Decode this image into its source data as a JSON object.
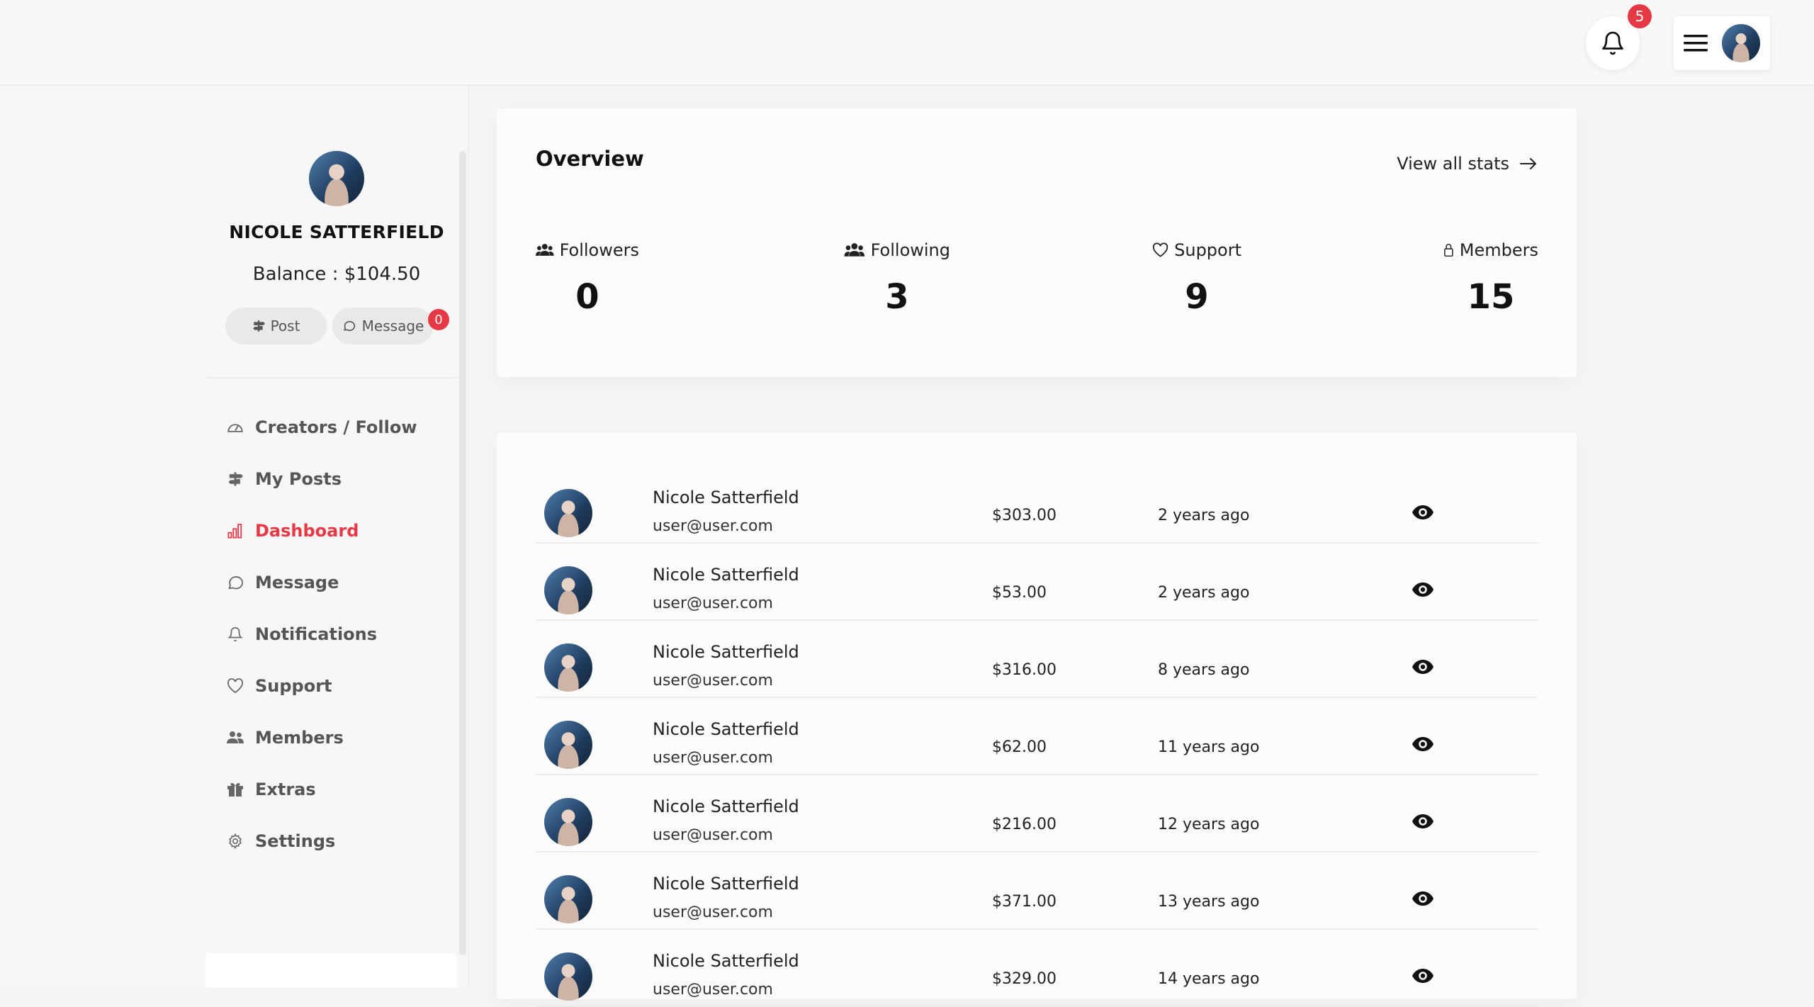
{
  "header": {
    "notification_count": "5"
  },
  "profile": {
    "name": "NICOLE SATTERFIELD",
    "balance_label": "Balance : $104.50",
    "post_label": "Post",
    "message_label": "Message",
    "message_count": "0"
  },
  "nav": {
    "items": [
      {
        "label": "Creators / Follow",
        "icon": "gauge-icon",
        "active": false
      },
      {
        "label": "My Posts",
        "icon": "signpost-icon",
        "active": false
      },
      {
        "label": "Dashboard",
        "icon": "bar-chart-icon",
        "active": true
      },
      {
        "label": "Message",
        "icon": "chat-icon",
        "active": false
      },
      {
        "label": "Notifications",
        "icon": "bell-icon",
        "active": false
      },
      {
        "label": "Support",
        "icon": "heart-icon",
        "active": false
      },
      {
        "label": "Members",
        "icon": "people-icon",
        "active": false
      },
      {
        "label": "Extras",
        "icon": "gift-icon",
        "active": false
      },
      {
        "label": "Settings",
        "icon": "gear-icon",
        "active": false
      }
    ]
  },
  "overview": {
    "title": "Overview",
    "view_all": "View all stats",
    "stats": [
      {
        "label": "Followers",
        "value": "0",
        "icon": "people-icon"
      },
      {
        "label": "Following",
        "value": "3",
        "icon": "people-icon"
      },
      {
        "label": "Support",
        "value": "9",
        "icon": "heart-icon"
      },
      {
        "label": "Members",
        "value": "15",
        "icon": "lock-icon"
      }
    ]
  },
  "transactions": [
    {
      "name": "Nicole Satterfield",
      "email": "user@user.com",
      "amount": "$303.00",
      "time": "2 years ago"
    },
    {
      "name": "Nicole Satterfield",
      "email": "user@user.com",
      "amount": "$53.00",
      "time": "2 years ago"
    },
    {
      "name": "Nicole Satterfield",
      "email": "user@user.com",
      "amount": "$316.00",
      "time": "8 years ago"
    },
    {
      "name": "Nicole Satterfield",
      "email": "user@user.com",
      "amount": "$62.00",
      "time": "11 years ago"
    },
    {
      "name": "Nicole Satterfield",
      "email": "user@user.com",
      "amount": "$216.00",
      "time": "12 years ago"
    },
    {
      "name": "Nicole Satterfield",
      "email": "user@user.com",
      "amount": "$371.00",
      "time": "13 years ago"
    },
    {
      "name": "Nicole Satterfield",
      "email": "user@user.com",
      "amount": "$329.00",
      "time": "14 years ago"
    }
  ],
  "colors": {
    "accent": "#e53945",
    "badge": "#e53945"
  }
}
